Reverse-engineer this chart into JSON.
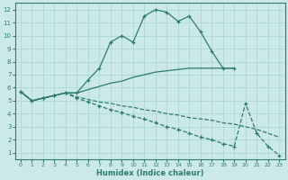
{
  "xlabel": "Humidex (Indice chaleur)",
  "bg_color": "#cce9e9",
  "line_color": "#2e7b6f",
  "grid_color": "#a8d4d4",
  "xlim": [
    -0.5,
    23.5
  ],
  "ylim": [
    0.5,
    12.5
  ],
  "xticks": [
    0,
    1,
    2,
    3,
    4,
    5,
    6,
    7,
    8,
    9,
    10,
    11,
    12,
    13,
    14,
    15,
    16,
    17,
    18,
    19,
    20,
    21,
    22,
    23
  ],
  "yticks": [
    1,
    2,
    3,
    4,
    5,
    6,
    7,
    8,
    9,
    10,
    11,
    12
  ],
  "line1_x": [
    0,
    1,
    2,
    3,
    4,
    5,
    6,
    7,
    8,
    9,
    10,
    11,
    12,
    13,
    14,
    15,
    16,
    17,
    18,
    19
  ],
  "line1_y": [
    5.7,
    5.0,
    5.2,
    5.4,
    5.6,
    5.6,
    6.6,
    7.5,
    9.5,
    10.0,
    9.5,
    11.5,
    12.0,
    11.8,
    11.1,
    11.5,
    10.3,
    8.8,
    7.5,
    7.5
  ],
  "line2_x": [
    0,
    1,
    2,
    3,
    4,
    5,
    6,
    7,
    8,
    9,
    10,
    11,
    12,
    13,
    14,
    15,
    16,
    17,
    18,
    19
  ],
  "line2_y": [
    5.7,
    5.0,
    5.2,
    5.4,
    5.6,
    5.6,
    5.85,
    6.1,
    6.35,
    6.5,
    6.8,
    7.0,
    7.2,
    7.3,
    7.4,
    7.5,
    7.5,
    7.5,
    7.5,
    7.5
  ],
  "line3_x": [
    0,
    1,
    2,
    3,
    4,
    5,
    6,
    7,
    8,
    9,
    10,
    11,
    12,
    13,
    14,
    15,
    16,
    17,
    18,
    19,
    20,
    21,
    22,
    23
  ],
  "line3_y": [
    5.7,
    5.0,
    5.2,
    5.4,
    5.6,
    5.2,
    4.9,
    4.6,
    4.3,
    4.1,
    3.8,
    3.6,
    3.3,
    3.0,
    2.8,
    2.5,
    2.2,
    2.0,
    1.7,
    1.5,
    4.8,
    2.5,
    1.5,
    0.8
  ],
  "line4_x": [
    0,
    1,
    2,
    3,
    4,
    5,
    6,
    7,
    8,
    9,
    10,
    11,
    12,
    13,
    14,
    15,
    16,
    17,
    18,
    19,
    20,
    21,
    22,
    23
  ],
  "line4_y": [
    5.7,
    5.0,
    5.2,
    5.4,
    5.6,
    5.3,
    5.1,
    4.9,
    4.8,
    4.6,
    4.5,
    4.3,
    4.2,
    4.0,
    3.9,
    3.7,
    3.6,
    3.5,
    3.3,
    3.2,
    3.0,
    2.8,
    2.5,
    2.2
  ]
}
